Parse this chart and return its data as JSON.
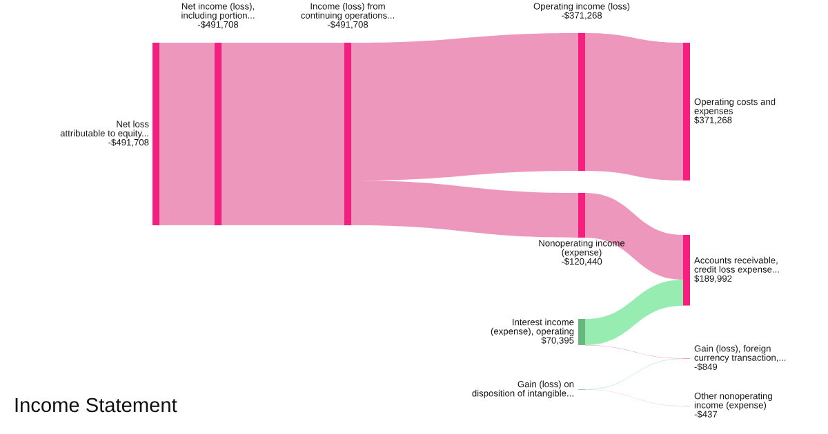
{
  "chart_data": {
    "type": "other",
    "title": "Income Statement",
    "categories": [
      "Net loss\nattributable to equity...",
      "Net income (loss),\nincluding portion...",
      "Income (loss) from\ncontinuing operations...",
      "Operating income (loss)",
      "Nonoperating income\n(expense)",
      "Interest income\n(expense), operating",
      "Gain (loss) on\ndisposition of intangible...",
      "Operating costs and\nexpenses",
      "Accounts receivable,\ncredit loss expense...",
      "Gain (loss), foreign\ncurrency transaction,...",
      "Other nonoperating\nincome (expense)"
    ],
    "values": [
      -491708,
      -491708,
      -491708,
      -371268,
      -120440,
      70395,
      null,
      371268,
      189992,
      -849,
      -437
    ],
    "value_labels": [
      "-$491,708",
      "-$491,708",
      "-$491,708",
      "-$371,268",
      "-$120,440",
      "$70,395",
      null,
      "$371,268",
      "$189,992",
      "-$849",
      "-$437"
    ],
    "colors": [
      "#f41f7e",
      "#f41f7e",
      "#f41f7e",
      "#f41f7e",
      "#f41f7e",
      "#67b77f",
      "#67b77f",
      "#f41f7e",
      "#f41f7e",
      "#f41f7e",
      "#f41f7e"
    ]
  }
}
